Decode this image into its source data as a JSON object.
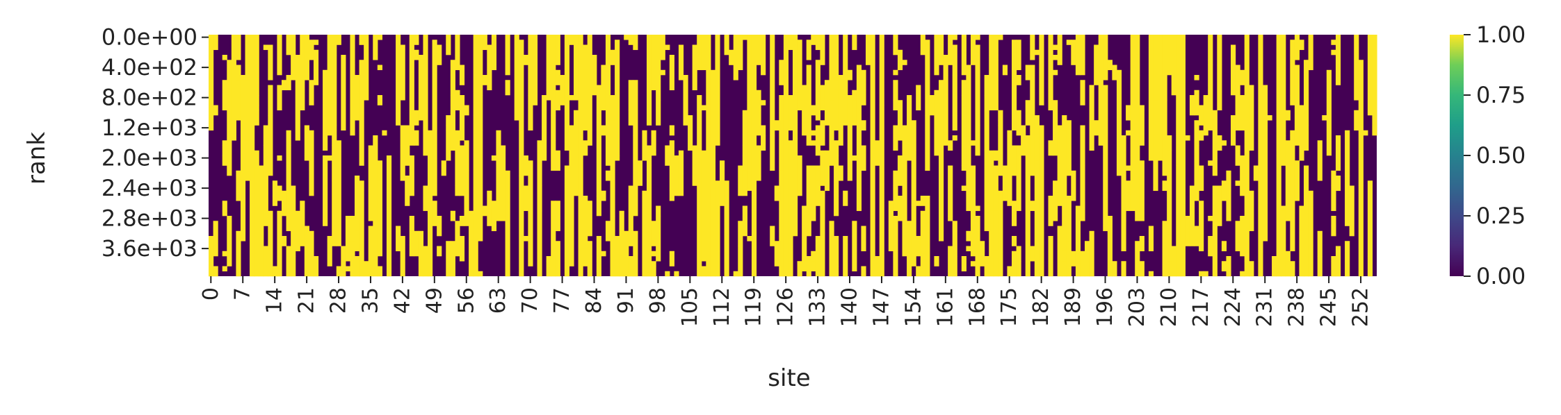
{
  "chart_data": {
    "type": "heatmap",
    "title": "",
    "xlabel": "site",
    "ylabel": "rank",
    "x_tick_labels": [
      "0",
      "7",
      "14",
      "21",
      "28",
      "35",
      "42",
      "49",
      "56",
      "63",
      "70",
      "77",
      "84",
      "91",
      "98",
      "105",
      "112",
      "119",
      "126",
      "133",
      "140",
      "147",
      "154",
      "161",
      "168",
      "175",
      "182",
      "189",
      "196",
      "203",
      "210",
      "217",
      "224",
      "231",
      "238",
      "245",
      "252"
    ],
    "x_range": [
      0,
      256
    ],
    "y_tick_labels": [
      "0.0e+00",
      "4.0e+02",
      "8.0e+02",
      "1.2e+03",
      "2.0e+03",
      "2.4e+03",
      "2.8e+03",
      "3.6e+03"
    ],
    "n_rows": 48,
    "value_range": [
      0,
      1
    ],
    "values_are_binary": true,
    "colormap": "viridis",
    "low_color": "#440154",
    "high_color": "#fde725",
    "colorbar": {
      "ticks": [
        "0.00",
        "0.25",
        "0.50",
        "0.75",
        "1.00"
      ],
      "placement": "right"
    }
  }
}
